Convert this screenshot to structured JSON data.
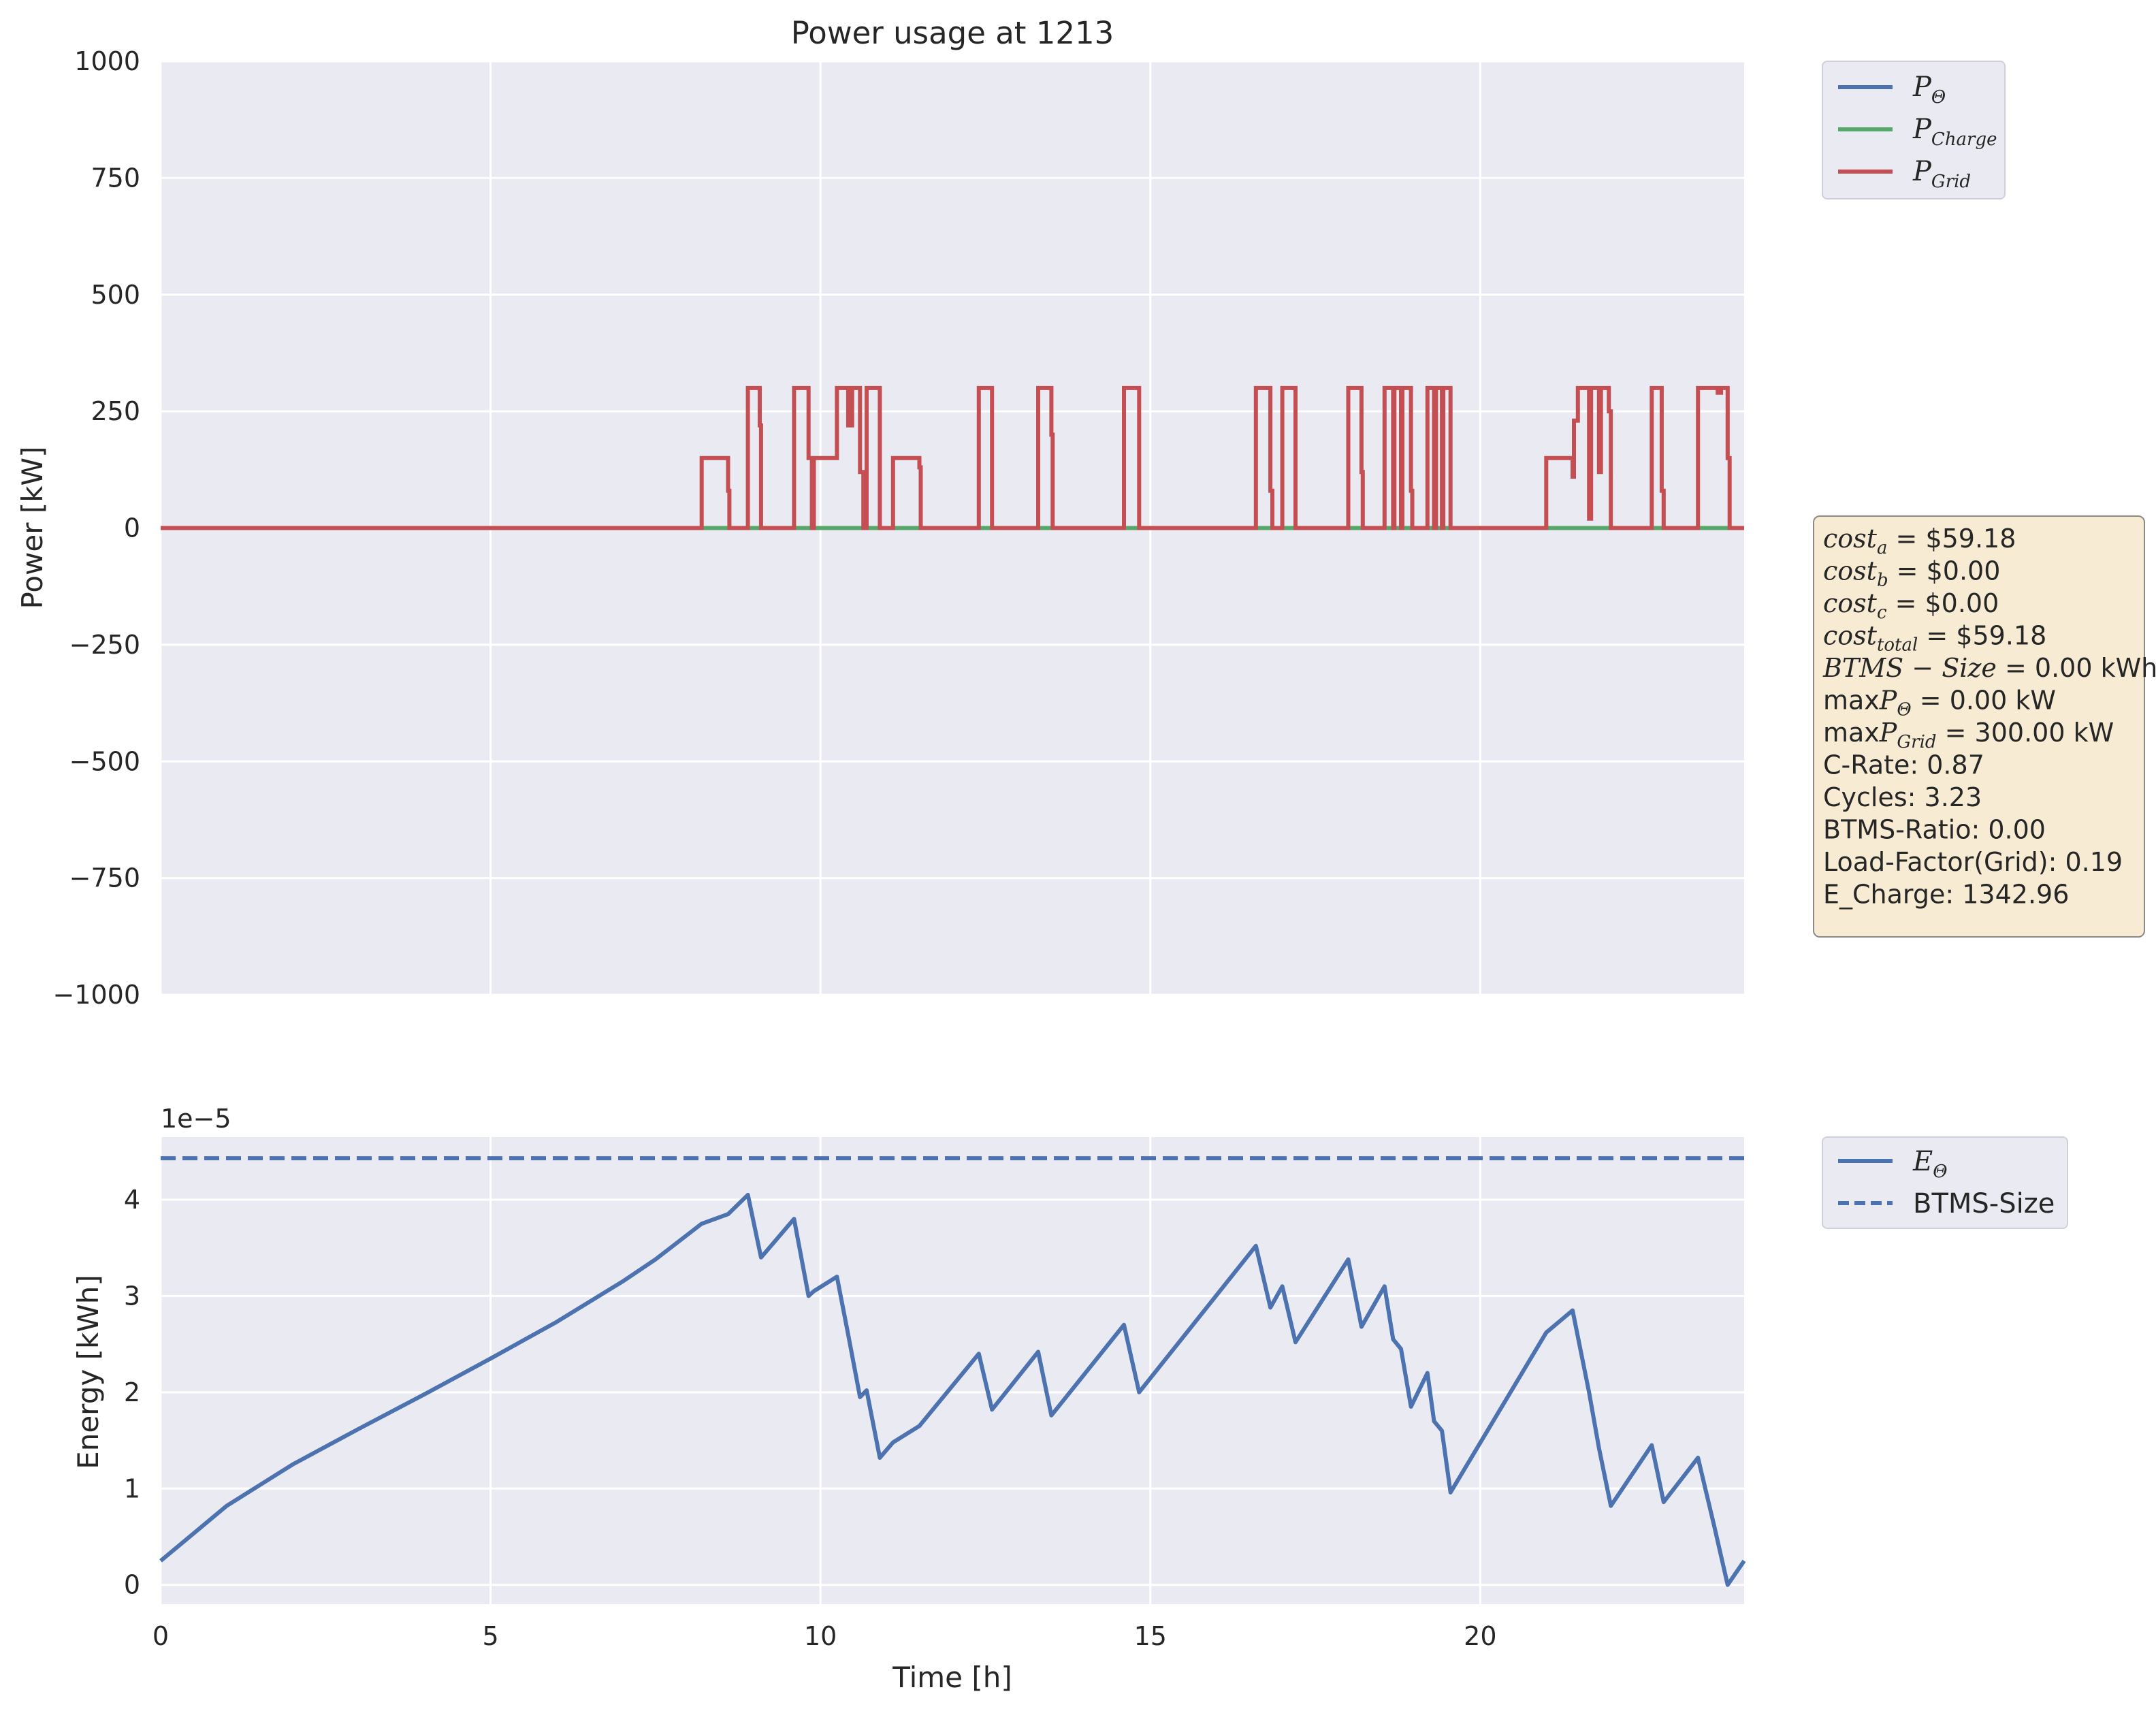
{
  "chart_data": [
    {
      "type": "line",
      "title": "Power usage at 1213",
      "xlabel": "Time [h]",
      "ylabel": "Power [kW]",
      "xlim": [
        0,
        24
      ],
      "ylim": [
        -1000,
        1000
      ],
      "xticks": [
        0,
        5,
        10,
        15,
        20
      ],
      "yticks": [
        -1000,
        -750,
        -500,
        -250,
        0,
        250,
        500,
        750,
        1000
      ],
      "ytick_labels": [
        "−1000",
        "−750",
        "−500",
        "−250",
        "0",
        "250",
        "500",
        "750",
        "1000"
      ],
      "grid": true,
      "legend_position": "outside-top-right",
      "series": [
        {
          "name": "P_Θ",
          "name_base": "P",
          "name_sub": "Θ",
          "color": "#4c72b0",
          "step": true,
          "points": [
            [
              0,
              0
            ],
            [
              24,
              0
            ]
          ]
        },
        {
          "name": "P_Charge",
          "name_base": "P",
          "name_sub": "Charge",
          "color": "#55a868",
          "step": true,
          "points": [
            [
              0,
              0
            ],
            [
              24,
              0
            ]
          ]
        },
        {
          "name": "P_Grid",
          "name_base": "P",
          "name_sub": "Grid",
          "color": "#c44e52",
          "step": true,
          "points": [
            [
              0,
              0
            ],
            [
              8.2,
              0
            ],
            [
              8.2,
              150
            ],
            [
              8.6,
              150
            ],
            [
              8.6,
              80
            ],
            [
              8.62,
              80
            ],
            [
              8.62,
              0
            ],
            [
              8.9,
              0
            ],
            [
              8.9,
              300
            ],
            [
              9.08,
              300
            ],
            [
              9.08,
              220
            ],
            [
              9.1,
              220
            ],
            [
              9.1,
              0
            ],
            [
              9.6,
              0
            ],
            [
              9.6,
              300
            ],
            [
              9.82,
              300
            ],
            [
              9.82,
              150
            ],
            [
              9.87,
              150
            ],
            [
              9.87,
              0
            ],
            [
              9.9,
              0
            ],
            [
              9.9,
              150
            ],
            [
              10.25,
              150
            ],
            [
              10.25,
              300
            ],
            [
              10.42,
              300
            ],
            [
              10.42,
              220
            ],
            [
              10.48,
              220
            ],
            [
              10.48,
              300
            ],
            [
              10.6,
              300
            ],
            [
              10.6,
              120
            ],
            [
              10.65,
              120
            ],
            [
              10.65,
              0
            ],
            [
              10.7,
              0
            ],
            [
              10.7,
              300
            ],
            [
              10.9,
              300
            ],
            [
              10.9,
              0
            ],
            [
              11.1,
              0
            ],
            [
              11.1,
              150
            ],
            [
              11.5,
              150
            ],
            [
              11.5,
              130
            ],
            [
              11.52,
              130
            ],
            [
              11.52,
              0
            ],
            [
              12.4,
              0
            ],
            [
              12.4,
              300
            ],
            [
              12.6,
              300
            ],
            [
              12.6,
              0
            ],
            [
              13.3,
              0
            ],
            [
              13.3,
              300
            ],
            [
              13.5,
              300
            ],
            [
              13.5,
              200
            ],
            [
              13.52,
              200
            ],
            [
              13.52,
              0
            ],
            [
              14.6,
              0
            ],
            [
              14.6,
              300
            ],
            [
              14.83,
              300
            ],
            [
              14.83,
              0
            ],
            [
              16.6,
              0
            ],
            [
              16.6,
              300
            ],
            [
              16.82,
              300
            ],
            [
              16.82,
              80
            ],
            [
              16.85,
              80
            ],
            [
              16.85,
              0
            ],
            [
              17.0,
              0
            ],
            [
              17.0,
              300
            ],
            [
              17.2,
              300
            ],
            [
              17.2,
              0
            ],
            [
              18.0,
              0
            ],
            [
              18.0,
              300
            ],
            [
              18.2,
              300
            ],
            [
              18.2,
              120
            ],
            [
              18.22,
              120
            ],
            [
              18.22,
              0
            ],
            [
              18.55,
              0
            ],
            [
              18.55,
              300
            ],
            [
              18.68,
              300
            ],
            [
              18.68,
              0
            ],
            [
              18.7,
              0
            ],
            [
              18.7,
              300
            ],
            [
              18.8,
              300
            ],
            [
              18.8,
              0
            ],
            [
              18.82,
              0
            ],
            [
              18.82,
              300
            ],
            [
              18.95,
              300
            ],
            [
              18.95,
              80
            ],
            [
              18.97,
              80
            ],
            [
              18.97,
              0
            ],
            [
              19.2,
              0
            ],
            [
              19.2,
              300
            ],
            [
              19.3,
              300
            ],
            [
              19.3,
              0
            ],
            [
              19.33,
              0
            ],
            [
              19.33,
              300
            ],
            [
              19.42,
              300
            ],
            [
              19.42,
              0
            ],
            [
              19.44,
              0
            ],
            [
              19.44,
              300
            ],
            [
              19.55,
              300
            ],
            [
              19.55,
              0
            ],
            [
              21.0,
              0
            ],
            [
              21.0,
              150
            ],
            [
              21.4,
              150
            ],
            [
              21.4,
              110
            ],
            [
              21.42,
              110
            ],
            [
              21.42,
              230
            ],
            [
              21.48,
              230
            ],
            [
              21.48,
              300
            ],
            [
              21.65,
              300
            ],
            [
              21.65,
              20
            ],
            [
              21.68,
              20
            ],
            [
              21.68,
              300
            ],
            [
              21.8,
              300
            ],
            [
              21.8,
              120
            ],
            [
              21.83,
              120
            ],
            [
              21.83,
              300
            ],
            [
              21.95,
              300
            ],
            [
              21.95,
              250
            ],
            [
              21.98,
              250
            ],
            [
              21.98,
              0
            ],
            [
              22.6,
              0
            ],
            [
              22.6,
              300
            ],
            [
              22.75,
              300
            ],
            [
              22.75,
              80
            ],
            [
              22.78,
              80
            ],
            [
              22.78,
              0
            ],
            [
              23.3,
              0
            ],
            [
              23.3,
              300
            ],
            [
              23.6,
              300
            ],
            [
              23.6,
              290
            ],
            [
              23.65,
              290
            ],
            [
              23.65,
              300
            ],
            [
              23.75,
              300
            ],
            [
              23.75,
              150
            ],
            [
              23.78,
              150
            ],
            [
              23.78,
              0
            ],
            [
              24,
              0
            ]
          ]
        }
      ],
      "annotation_lines": [
        {
          "math": true,
          "base": "cost",
          "sub": "a",
          "value": " = $59.18"
        },
        {
          "math": true,
          "base": "cost",
          "sub": "b",
          "value": " = $0.00"
        },
        {
          "math": true,
          "base": "cost",
          "sub": "c",
          "value": " = $0.00"
        },
        {
          "math": true,
          "base": "cost",
          "sub": "total",
          "value": " = $59.18"
        },
        {
          "math": true,
          "base": "BTMS − Size",
          "sub": "",
          "value": " = 0.00",
          "unit": " kWh"
        },
        {
          "math": true,
          "prefix": "max",
          "base": "P",
          "sub": "Θ",
          "value": " = 0.00",
          "unit": " kW"
        },
        {
          "math": true,
          "prefix": "max",
          "base": "P",
          "sub": "Grid",
          "value": " = 300.00",
          "unit": " kW"
        },
        {
          "math": false,
          "text": "C-Rate: 0.87"
        },
        {
          "math": false,
          "text": "Cycles: 3.23"
        },
        {
          "math": false,
          "text": "BTMS-Ratio: 0.00"
        },
        {
          "math": false,
          "text": "Load-Factor(Grid): 0.19"
        },
        {
          "math": false,
          "text": "E_Charge: 1342.96"
        }
      ],
      "annotation_box_color": "#f8ebd3"
    },
    {
      "type": "line",
      "xlabel": "Time [h]",
      "ylabel": "Energy [kWh]",
      "offset_label": "1e−5",
      "xlim": [
        0,
        24
      ],
      "ylim": [
        -0.2,
        4.65
      ],
      "xticks": [
        0,
        5,
        10,
        15,
        20
      ],
      "yticks": [
        0,
        1,
        2,
        3,
        4
      ],
      "grid": true,
      "legend_position": "outside-top-right",
      "series": [
        {
          "name": "E_Θ",
          "name_base": "E",
          "name_sub": "Θ",
          "color": "#4c72b0",
          "style": "solid",
          "points": [
            [
              0,
              0.25
            ],
            [
              1,
              0.82
            ],
            [
              2,
              1.25
            ],
            [
              3,
              1.62
            ],
            [
              4,
              1.98
            ],
            [
              5,
              2.35
            ],
            [
              6,
              2.73
            ],
            [
              7,
              3.15
            ],
            [
              7.5,
              3.38
            ],
            [
              8.2,
              3.75
            ],
            [
              8.6,
              3.85
            ],
            [
              8.9,
              4.05
            ],
            [
              9.1,
              3.4
            ],
            [
              9.6,
              3.8
            ],
            [
              9.82,
              3.0
            ],
            [
              9.9,
              3.05
            ],
            [
              10.25,
              3.2
            ],
            [
              10.42,
              2.6
            ],
            [
              10.6,
              1.95
            ],
            [
              10.7,
              2.02
            ],
            [
              10.9,
              1.32
            ],
            [
              11.1,
              1.48
            ],
            [
              11.5,
              1.65
            ],
            [
              12.4,
              2.4
            ],
            [
              12.6,
              1.82
            ],
            [
              13.3,
              2.42
            ],
            [
              13.5,
              1.76
            ],
            [
              14.6,
              2.7
            ],
            [
              14.83,
              2.0
            ],
            [
              16.6,
              3.52
            ],
            [
              16.82,
              2.88
            ],
            [
              17.0,
              3.1
            ],
            [
              17.2,
              2.52
            ],
            [
              18.0,
              3.38
            ],
            [
              18.2,
              2.68
            ],
            [
              18.55,
              3.1
            ],
            [
              18.68,
              2.55
            ],
            [
              18.8,
              2.45
            ],
            [
              18.95,
              1.85
            ],
            [
              19.2,
              2.2
            ],
            [
              19.3,
              1.7
            ],
            [
              19.42,
              1.6
            ],
            [
              19.55,
              0.96
            ],
            [
              21.0,
              2.62
            ],
            [
              21.4,
              2.85
            ],
            [
              21.65,
              2.0
            ],
            [
              21.8,
              1.42
            ],
            [
              21.98,
              0.82
            ],
            [
              22.6,
              1.45
            ],
            [
              22.78,
              0.86
            ],
            [
              23.3,
              1.32
            ],
            [
              23.55,
              0.6
            ],
            [
              23.75,
              0.0
            ],
            [
              24,
              0.25
            ]
          ]
        },
        {
          "name": "BTMS-Size",
          "color": "#4c72b0",
          "style": "dashed",
          "points": [
            [
              0,
              4.43
            ],
            [
              24,
              4.43
            ]
          ]
        }
      ]
    }
  ]
}
